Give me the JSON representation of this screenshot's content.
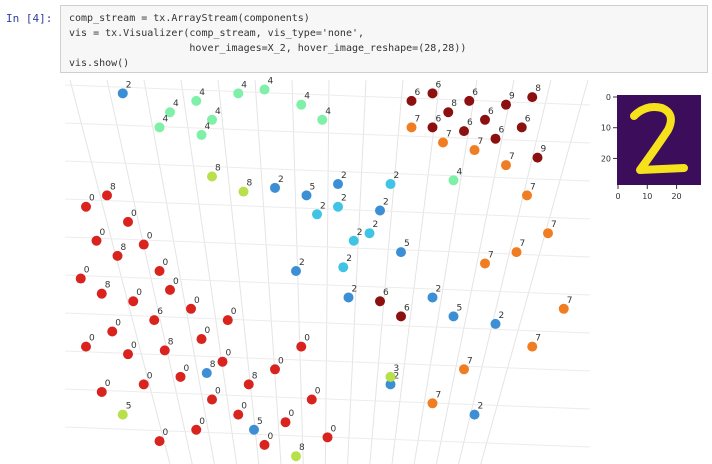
{
  "prompt": "In [4]:",
  "code": [
    "comp_stream = tx.ArrayStream(components)",
    "vis = tx.Visualizer(comp_stream, vis_type='none',",
    "                    hover_images=X_2, hover_image_reshape=(28,28))",
    "vis.show()"
  ],
  "plot": {
    "groups": [
      {
        "color": "#d9231f",
        "labels": [
          "0",
          "8",
          "0",
          "0",
          "8",
          "0",
          "0",
          "0",
          "8",
          "0",
          "0",
          "0",
          "6",
          "0",
          "0",
          "0",
          "8",
          "0",
          "0",
          "0",
          "0",
          "0",
          "0",
          "8",
          "0",
          "0",
          "0",
          "0",
          "0",
          "0",
          "0",
          "0",
          "0",
          "0"
        ],
        "points": [
          [
            4,
            33
          ],
          [
            8,
            30
          ],
          [
            12,
            37
          ],
          [
            6,
            42
          ],
          [
            10,
            46
          ],
          [
            15,
            43
          ],
          [
            18,
            50
          ],
          [
            3,
            52
          ],
          [
            7,
            56
          ],
          [
            13,
            58
          ],
          [
            20,
            55
          ],
          [
            24,
            60
          ],
          [
            17,
            63
          ],
          [
            9,
            66
          ],
          [
            4,
            70
          ],
          [
            12,
            72
          ],
          [
            19,
            71
          ],
          [
            26,
            68
          ],
          [
            30,
            74
          ],
          [
            22,
            78
          ],
          [
            15,
            80
          ],
          [
            7,
            82
          ],
          [
            28,
            84
          ],
          [
            35,
            80
          ],
          [
            40,
            76
          ],
          [
            33,
            88
          ],
          [
            25,
            92
          ],
          [
            18,
            95
          ],
          [
            42,
            90
          ],
          [
            38,
            96
          ],
          [
            47,
            84
          ],
          [
            45,
            70
          ],
          [
            50,
            94
          ],
          [
            31,
            63
          ]
        ]
      },
      {
        "color": "#8c1010",
        "labels": [
          "6",
          "6",
          "8",
          "6",
          "6",
          "9",
          "6",
          "8",
          "6",
          "6",
          "6",
          "9",
          "6",
          "6"
        ],
        "points": [
          [
            66,
            5
          ],
          [
            70,
            3
          ],
          [
            73,
            8
          ],
          [
            77,
            5
          ],
          [
            80,
            10
          ],
          [
            84,
            6
          ],
          [
            87,
            12
          ],
          [
            89,
            4
          ],
          [
            82,
            15
          ],
          [
            76,
            13
          ],
          [
            70,
            12
          ],
          [
            90,
            20
          ],
          [
            60,
            58
          ],
          [
            64,
            62
          ]
        ]
      },
      {
        "color": "#f07d22",
        "labels": [
          "7",
          "7",
          "7",
          "7",
          "7",
          "7",
          "7",
          "7",
          "7",
          "7",
          "7",
          "7"
        ],
        "points": [
          [
            66,
            12
          ],
          [
            72,
            16
          ],
          [
            78,
            18
          ],
          [
            84,
            22
          ],
          [
            88,
            30
          ],
          [
            92,
            40
          ],
          [
            86,
            45
          ],
          [
            80,
            48
          ],
          [
            95,
            60
          ],
          [
            89,
            70
          ],
          [
            76,
            76
          ],
          [
            70,
            85
          ]
        ]
      },
      {
        "color": "#3c8fd4",
        "labels": [
          "2",
          "2",
          "5",
          "2",
          "2",
          "5",
          "2",
          "2",
          "5",
          "2",
          "2",
          "8",
          "5",
          "2",
          "2"
        ],
        "points": [
          [
            11,
            3
          ],
          [
            40,
            28
          ],
          [
            46,
            30
          ],
          [
            52,
            27
          ],
          [
            60,
            34
          ],
          [
            64,
            45
          ],
          [
            54,
            57
          ],
          [
            70,
            57
          ],
          [
            74,
            62
          ],
          [
            82,
            64
          ],
          [
            62,
            80
          ],
          [
            27,
            77
          ],
          [
            36,
            92
          ],
          [
            78,
            88
          ],
          [
            44,
            50
          ]
        ]
      },
      {
        "color": "#7ff0a8",
        "labels": [
          "4",
          "4",
          "4",
          "4",
          "4",
          "4",
          "4",
          "4",
          "4",
          "4"
        ],
        "points": [
          [
            20,
            8
          ],
          [
            25,
            5
          ],
          [
            28,
            10
          ],
          [
            33,
            3
          ],
          [
            38,
            2
          ],
          [
            45,
            6
          ],
          [
            49,
            10
          ],
          [
            26,
            14
          ],
          [
            18,
            12
          ],
          [
            74,
            26
          ]
        ]
      },
      {
        "color": "#3fc4e6",
        "labels": [
          "2",
          "2",
          "2",
          "2",
          "2",
          "2"
        ],
        "points": [
          [
            48,
            35
          ],
          [
            55,
            42
          ],
          [
            53,
            49
          ],
          [
            58,
            40
          ],
          [
            52,
            33
          ],
          [
            62,
            27
          ]
        ]
      },
      {
        "color": "#b7e04a",
        "labels": [
          "8",
          "8",
          "5",
          "3",
          "8"
        ],
        "points": [
          [
            28,
            25
          ],
          [
            34,
            29
          ],
          [
            11,
            88
          ],
          [
            62,
            78
          ],
          [
            44,
            99
          ]
        ]
      }
    ]
  },
  "inset": {
    "xticks": [
      0,
      10,
      20
    ],
    "yticks": [
      0,
      10,
      20
    ]
  }
}
